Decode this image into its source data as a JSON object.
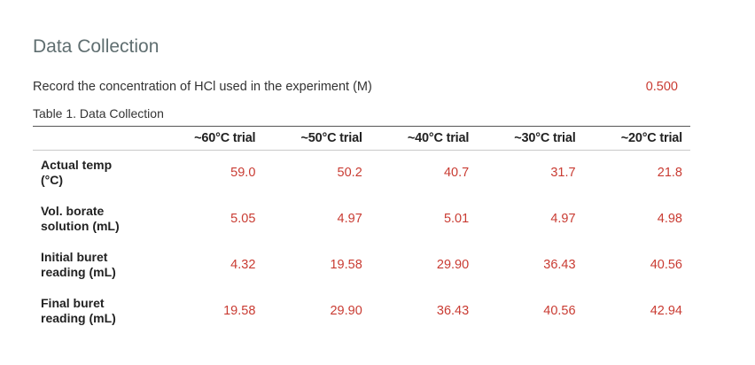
{
  "section": {
    "title": "Data Collection"
  },
  "concentration": {
    "label": "Record the concentration of HCl used in the experiment (M)",
    "value": "0.500"
  },
  "table": {
    "caption": "Table 1. Data Collection",
    "columns": [
      "~60°C trial",
      "~50°C trial",
      "~40°C trial",
      "~30°C trial",
      "~20°C trial"
    ],
    "rows": [
      {
        "label_line1": "Actual temp",
        "label_line2": "(°C)",
        "values": [
          "59.0",
          "50.2",
          "40.7",
          "31.7",
          "21.8"
        ]
      },
      {
        "label_line1": "Vol. borate",
        "label_line2": "solution (mL)",
        "values": [
          "5.05",
          "4.97",
          "5.01",
          "4.97",
          "4.98"
        ]
      },
      {
        "label_line1": "Initial buret",
        "label_line2": "reading (mL)",
        "values": [
          "4.32",
          "19.58",
          "29.90",
          "36.43",
          "40.56"
        ]
      },
      {
        "label_line1": "Final buret",
        "label_line2": "reading (mL)",
        "values": [
          "19.58",
          "29.90",
          "36.43",
          "40.56",
          "42.94"
        ]
      }
    ]
  },
  "colors": {
    "title": "#5f6e70",
    "value": "#c93b32",
    "text": "#333333"
  }
}
